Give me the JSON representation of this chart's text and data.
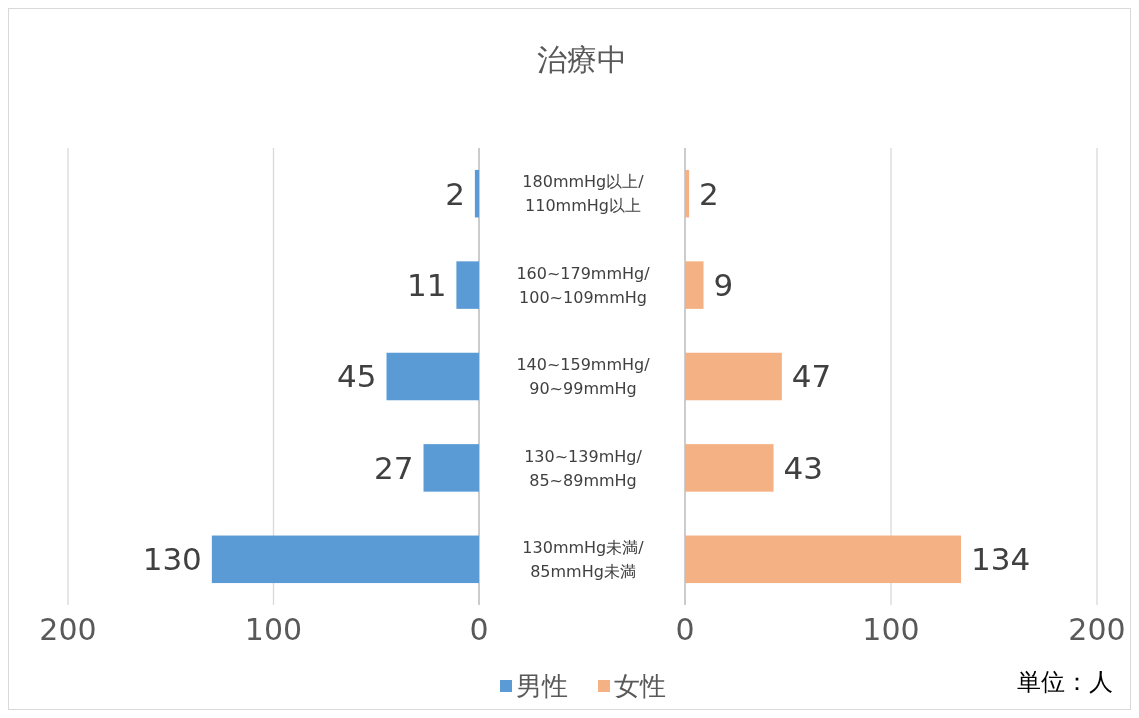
{
  "chart_data": [
    {
      "type": "bar",
      "orientation": "horizontal",
      "title": "治療中",
      "categories": [
        "180mmHg以上/110mmHg以上",
        "160~179mmHg/100~109mmHg",
        "140~159mmHg/90~99mmHg",
        "130~139mHg/85~89mmHg",
        "130mmHg未満/85mmHg未満"
      ],
      "series": [
        {
          "name": "男性",
          "color": "#5b9bd5",
          "values": [
            2,
            11,
            45,
            27,
            130
          ]
        }
      ],
      "xlim": [
        200,
        0
      ],
      "xticks": [
        200,
        100,
        0
      ],
      "grid": "x",
      "data_labels": true,
      "legend": "bottom"
    },
    {
      "type": "bar",
      "orientation": "horizontal",
      "categories": [
        "180mmHg以上/110mmHg以上",
        "160~179mmHg/100~109mmHg",
        "140~159mmHg/90~99mmHg",
        "130~139mHg/85~89mmHg",
        "130mmHg未満/85mmHg未満"
      ],
      "series": [
        {
          "name": "女性",
          "color": "#f4b183",
          "values": [
            2,
            9,
            47,
            43,
            134
          ]
        }
      ],
      "xlim": [
        0,
        200
      ],
      "xticks": [
        0,
        100,
        200
      ],
      "grid": "x",
      "data_labels": true,
      "legend": "bottom",
      "tick_labels": "x",
      "annotations": [
        "単位：人"
      ]
    }
  ]
}
